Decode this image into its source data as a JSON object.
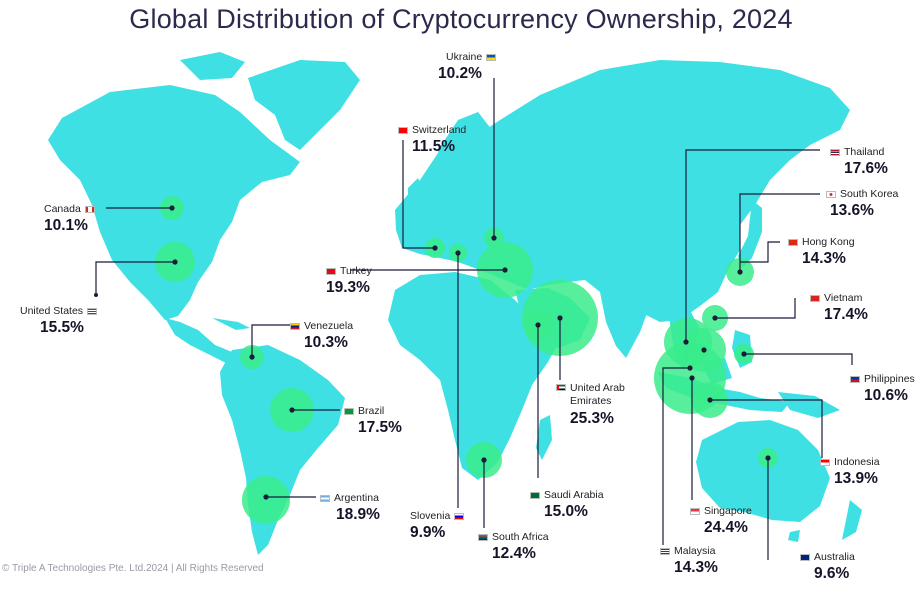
{
  "title": "Global Distribution of Cryptocurrency Ownership, 2024",
  "footer": "© Triple A Technologies Pte. Ltd.2024 | All Rights Reserved",
  "colors": {
    "land": "#3fe0e4",
    "bubble": "#39ec8b",
    "leader": "#1b1b3a",
    "title": "#2b2a4c"
  },
  "countries": [
    {
      "id": "canada",
      "name": "Canada",
      "value": "10.1%",
      "flag": [
        "#d52b1e",
        "#ffffff",
        "#d52b1e"
      ]
    },
    {
      "id": "united-states",
      "name": "United States",
      "value": "15.5%",
      "flag": [
        "#b22234",
        "#ffffff",
        "#3c3b6e"
      ]
    },
    {
      "id": "venezuela",
      "name": "Venezuela",
      "value": "10.3%",
      "flag": [
        "#ffcc00",
        "#00247d",
        "#cf142b"
      ]
    },
    {
      "id": "brazil",
      "name": "Brazil",
      "value": "17.5%",
      "flag": [
        "#009c3b",
        "#ffdf00",
        "#002776"
      ]
    },
    {
      "id": "argentina",
      "name": "Argentina",
      "value": "18.9%",
      "flag": [
        "#74acdf",
        "#ffffff",
        "#74acdf"
      ]
    },
    {
      "id": "ukraine",
      "name": "Ukraine",
      "value": "10.2%",
      "flag": [
        "#0057b7",
        "#ffd700",
        "#ffd700"
      ]
    },
    {
      "id": "switzerland",
      "name": "Switzerland",
      "value": "11.5%",
      "flag": [
        "#ff0000",
        "#ffffff",
        "#ff0000"
      ]
    },
    {
      "id": "turkey",
      "name": "Turkey",
      "value": "19.3%",
      "flag": [
        "#e30a17",
        "#ffffff",
        "#e30a17"
      ]
    },
    {
      "id": "slovenia",
      "name": "Slovenia",
      "value": "9.9%",
      "flag": [
        "#ffffff",
        "#0000ff",
        "#ff0000"
      ]
    },
    {
      "id": "south-africa",
      "name": "South Africa",
      "value": "12.4%",
      "flag": [
        "#007a4d",
        "#ffb612",
        "#de3831"
      ]
    },
    {
      "id": "saudi-arabia",
      "name": "Saudi Arabia",
      "value": "15.0%",
      "flag": [
        "#006c35",
        "#ffffff",
        "#006c35"
      ]
    },
    {
      "id": "uae",
      "name": "United Arab Emirates",
      "value": "25.3%",
      "flag": [
        "#00732f",
        "#ffffff",
        "#000000"
      ]
    },
    {
      "id": "thailand",
      "name": "Thailand",
      "value": "17.6%",
      "flag": [
        "#a51931",
        "#2d2a4a",
        "#a51931"
      ]
    },
    {
      "id": "south-korea",
      "name": "South Korea",
      "value": "13.6%",
      "flag": [
        "#ffffff",
        "#cd2e3a",
        "#0047a0"
      ]
    },
    {
      "id": "hong-kong",
      "name": "Hong Kong",
      "value": "14.3%",
      "flag": [
        "#de2910",
        "#ffffff",
        "#de2910"
      ]
    },
    {
      "id": "vietnam",
      "name": "Vietnam",
      "value": "17.4%",
      "flag": [
        "#da251d",
        "#ffff00",
        "#da251d"
      ]
    },
    {
      "id": "philippines",
      "name": "Philippines",
      "value": "10.6%",
      "flag": [
        "#0038a8",
        "#ffffff",
        "#ce1126"
      ]
    },
    {
      "id": "indonesia",
      "name": "Indonesia",
      "value": "13.9%",
      "flag": [
        "#ff0000",
        "#ffffff",
        "#ffffff"
      ]
    },
    {
      "id": "singapore",
      "name": "Singapore",
      "value": "24.4%",
      "flag": [
        "#ef3340",
        "#ffffff",
        "#ffffff"
      ]
    },
    {
      "id": "malaysia",
      "name": "Malaysia",
      "value": "14.3%",
      "flag": [
        "#cc0001",
        "#ffffff",
        "#010066"
      ]
    },
    {
      "id": "australia",
      "name": "Australia",
      "value": "9.6%",
      "flag": [
        "#00247d",
        "#00247d",
        "#ffffff"
      ]
    }
  ]
}
